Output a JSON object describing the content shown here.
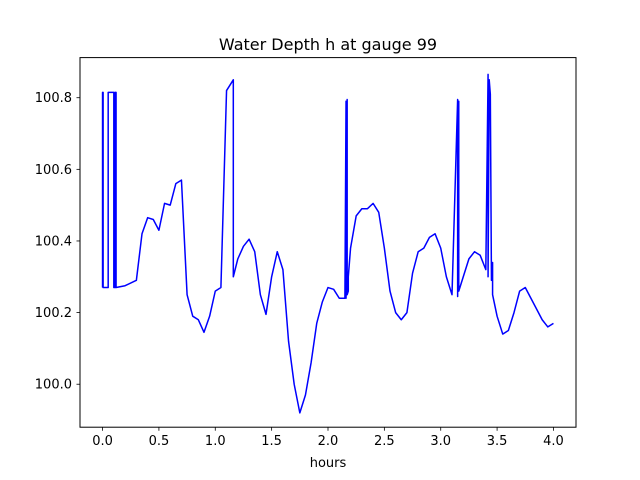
{
  "chart_data": {
    "type": "line",
    "title": "Water Depth h at gauge 99",
    "xlabel": "hours",
    "ylabel": "",
    "xlim": [
      -0.2,
      4.2
    ],
    "ylim": [
      99.88,
      100.912
    ],
    "grid": false,
    "x_ticks": [
      0.0,
      0.5,
      1.0,
      1.5,
      2.0,
      2.5,
      3.0,
      3.5,
      4.0
    ],
    "x_tick_labels": [
      "0.0",
      "0.5",
      "1.0",
      "1.5",
      "2.0",
      "2.5",
      "3.0",
      "3.5",
      "4.0"
    ],
    "y_ticks": [
      100.0,
      100.2,
      100.4,
      100.6,
      100.8
    ],
    "y_tick_labels": [
      "100.0",
      "100.2",
      "100.4",
      "100.6",
      "100.8"
    ],
    "series": [
      {
        "color": "#0000ff",
        "x": [
          0.0,
          0.0,
          0.005,
          0.005,
          0.05,
          0.05,
          0.1,
          0.1,
          0.11,
          0.11,
          0.12,
          0.12,
          0.2,
          0.3,
          0.35,
          0.4,
          0.45,
          0.5,
          0.55,
          0.6,
          0.65,
          0.7,
          0.75,
          0.8,
          0.85,
          0.9,
          0.95,
          1.0,
          1.05,
          1.1,
          1.1,
          1.16,
          1.16,
          1.2,
          1.25,
          1.3,
          1.35,
          1.4,
          1.45,
          1.5,
          1.55,
          1.6,
          1.65,
          1.7,
          1.75,
          1.8,
          1.85,
          1.9,
          1.95,
          2.0,
          2.05,
          2.1,
          2.15,
          2.16,
          2.16,
          2.17,
          2.17,
          2.18,
          2.18,
          2.2,
          2.25,
          2.3,
          2.35,
          2.4,
          2.45,
          2.5,
          2.55,
          2.6,
          2.65,
          2.7,
          2.75,
          2.8,
          2.85,
          2.9,
          2.95,
          3.0,
          3.05,
          3.1,
          3.15,
          3.15,
          3.16,
          3.16,
          3.2,
          3.25,
          3.3,
          3.35,
          3.4,
          3.42,
          3.42,
          3.43,
          3.44,
          3.45,
          3.45,
          3.46,
          3.46,
          3.5,
          3.55,
          3.6,
          3.65,
          3.7,
          3.75,
          3.8,
          3.85,
          3.9,
          3.95,
          4.0
        ],
        "values": [
          100.27,
          100.815,
          100.815,
          100.27,
          100.27,
          100.815,
          100.815,
          100.27,
          100.27,
          100.815,
          100.815,
          100.27,
          100.275,
          100.29,
          100.42,
          100.465,
          100.46,
          100.43,
          100.505,
          100.5,
          100.56,
          100.57,
          100.25,
          100.19,
          100.18,
          100.145,
          100.19,
          100.26,
          100.27,
          100.82,
          100.82,
          100.85,
          100.3,
          100.35,
          100.385,
          100.405,
          100.37,
          100.25,
          100.195,
          100.3,
          100.37,
          100.32,
          100.12,
          100.0,
          99.92,
          99.97,
          100.06,
          100.17,
          100.23,
          100.27,
          100.265,
          100.24,
          100.24,
          100.79,
          100.24,
          100.795,
          100.25,
          100.26,
          100.3,
          100.38,
          100.47,
          100.49,
          100.49,
          100.505,
          100.48,
          100.38,
          100.26,
          100.2,
          100.18,
          100.2,
          100.31,
          100.37,
          100.38,
          100.41,
          100.42,
          100.38,
          100.3,
          100.25,
          100.795,
          100.245,
          100.79,
          100.26,
          100.3,
          100.35,
          100.37,
          100.36,
          100.32,
          100.865,
          100.3,
          100.85,
          100.81,
          100.29,
          100.29,
          100.34,
          100.25,
          100.19,
          100.14,
          100.15,
          100.2,
          100.26,
          100.27,
          100.24,
          100.21,
          100.18,
          100.16,
          100.17
        ]
      }
    ]
  }
}
